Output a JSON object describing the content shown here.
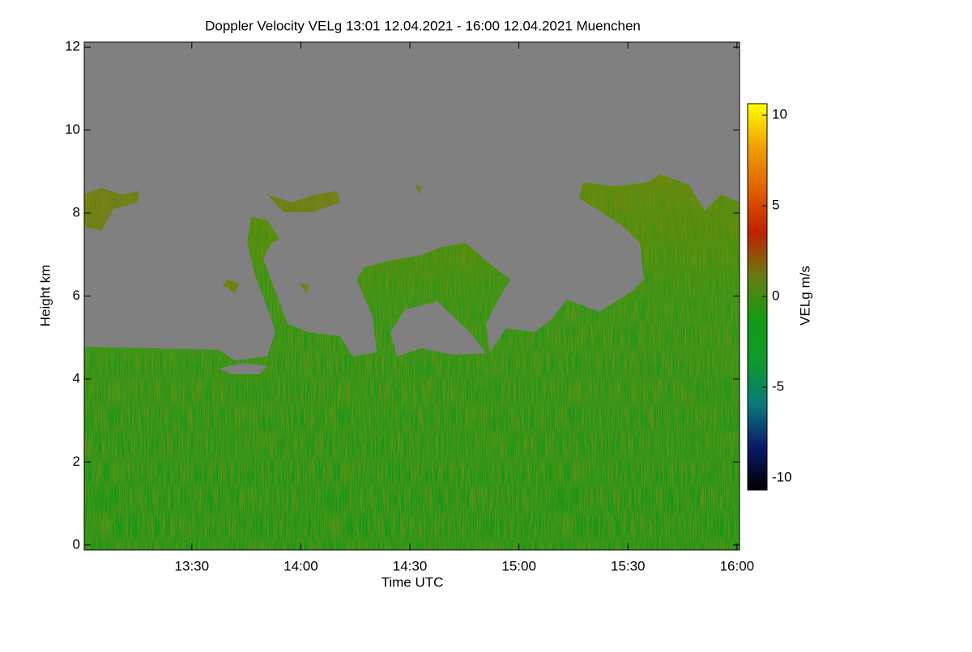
{
  "chart_data": {
    "type": "heatmap",
    "title": "Doppler Velocity VELg   13:01 12.04.2021 - 16:00 12.04.2021 Muenchen",
    "xlabel": "Time UTC",
    "ylabel": "Height km",
    "xlim": [
      780.4,
      960.7
    ],
    "xticks": [
      {
        "value": 810,
        "label": "13:30"
      },
      {
        "value": 840,
        "label": "14:00"
      },
      {
        "value": 870,
        "label": "14:30"
      },
      {
        "value": 900,
        "label": "15:00"
      },
      {
        "value": 930,
        "label": "15:30"
      },
      {
        "value": 960,
        "label": "16:00"
      }
    ],
    "ylim": [
      -0.12,
      12.12
    ],
    "yticks": [
      0,
      2,
      4,
      6,
      8,
      10,
      12
    ],
    "colorbar": {
      "label": "VELg m/s",
      "clim": [
        -10.67,
        10.63
      ],
      "ticks": [
        -10,
        -5,
        0,
        5,
        10
      ],
      "colormap": [
        "#000000",
        "#0a1a6a",
        "#0a7a7a",
        "#0f9a2a",
        "#159a15",
        "#6a7a10",
        "#c02000",
        "#e06000",
        "#f0a000",
        "#ffff00"
      ]
    }
  }
}
